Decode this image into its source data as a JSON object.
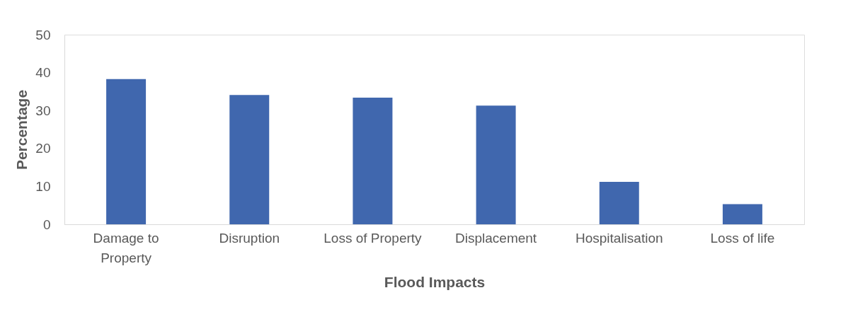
{
  "chart_data": {
    "type": "bar",
    "xlabel": "Flood Impacts",
    "ylabel": "Percentage",
    "categories": [
      "Damage to Property",
      "Disruption",
      "Loss of Property",
      "Displacement",
      "Hospitalisation",
      "Loss of life"
    ],
    "values": [
      38.3,
      34.1,
      33.4,
      31.3,
      11.2,
      5.3
    ],
    "color": "#4067ae",
    "ylim": [
      0,
      50
    ],
    "yticks": [
      0,
      10,
      20,
      30,
      40,
      50
    ],
    "grid": false
  }
}
